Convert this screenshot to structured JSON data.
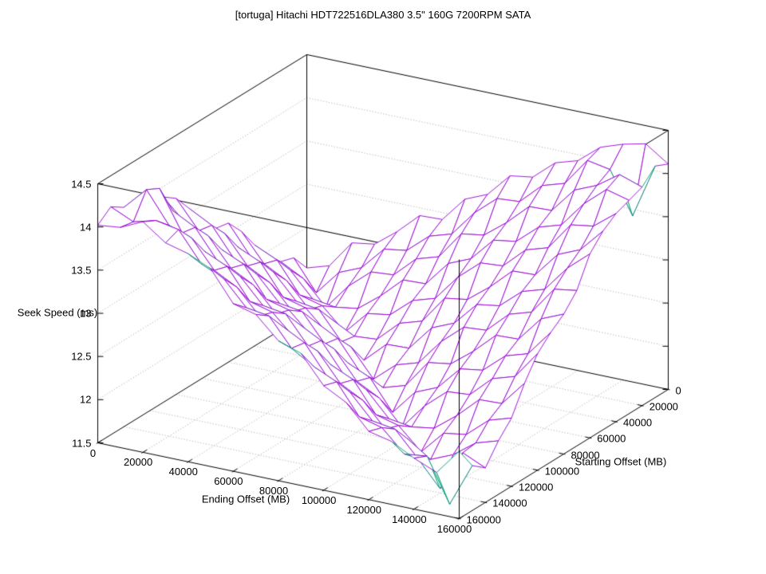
{
  "chart_data": {
    "type": "surface",
    "title": "[tortuga] Hitachi HDT722516DLA380 3.5\" 160G 7200RPM SATA",
    "xlabel": "Ending Offset (MB)",
    "ylabel": "Starting Offset (MB)",
    "zlabel": "Seek Speed (ms)",
    "xlim": [
      0,
      160000
    ],
    "ylim": [
      0,
      160000
    ],
    "zlim": [
      11.5,
      14.5
    ],
    "grid": true,
    "legend": "none",
    "x_tick_labels": [
      "0",
      "20000",
      "40000",
      "60000",
      "80000",
      "100000",
      "120000",
      "140000",
      "160000"
    ],
    "y_tick_labels": [
      "0",
      "20000",
      "40000",
      "60000",
      "80000",
      "100000",
      "120000",
      "140000",
      "160000"
    ],
    "z_tick_labels": [
      "11.5",
      "12",
      "12.5",
      "13",
      "13.5",
      "14",
      "14.5"
    ],
    "x_values": [
      0,
      10000,
      20000,
      30000,
      40000,
      50000,
      60000,
      70000,
      80000,
      90000,
      100000,
      110000,
      120000,
      130000,
      140000,
      150000,
      160000
    ],
    "y_values": [
      0,
      10000,
      20000,
      30000,
      40000,
      50000,
      60000,
      70000,
      80000,
      90000,
      100000,
      110000,
      120000,
      130000,
      140000,
      150000,
      160000
    ],
    "colors": {
      "mesh_top": "#9400d3",
      "mesh_underside": "#009e73",
      "grid_dotted": "#a6a6a6",
      "box": "#000000",
      "text": "#000000",
      "background": "#ffffff"
    },
    "z_values": [
      [
        12.03,
        12.11,
        12.43,
        12.47,
        12.67,
        12.91,
        12.92,
        13.21,
        13.32,
        13.59,
        13.63,
        13.85,
        13.93,
        14.14,
        14.23,
        14.29,
        14.11
      ],
      [
        12.24,
        11.89,
        12.18,
        12.29,
        12.56,
        12.6,
        12.82,
        12.9,
        13.2,
        13.42,
        13.44,
        13.68,
        13.76,
        14.08,
        14.03,
        13.55,
        14.18
      ],
      [
        12.29,
        12.15,
        11.87,
        12.17,
        12.39,
        12.41,
        12.65,
        12.73,
        13.05,
        13.09,
        13.29,
        13.53,
        13.54,
        13.83,
        13.94,
        14.12,
        14.03
      ],
      [
        12.46,
        12.34,
        12.06,
        12.02,
        12.06,
        12.26,
        12.5,
        12.51,
        12.8,
        12.91,
        13.18,
        13.22,
        13.44,
        13.52,
        13.82,
        14.04,
        13.97
      ],
      [
        12.67,
        12.55,
        12.2,
        12.13,
        11.88,
        12.15,
        12.19,
        12.41,
        12.49,
        12.79,
        13.01,
        13.03,
        13.27,
        13.35,
        13.67,
        13.71,
        13.91
      ],
      [
        12.92,
        12.6,
        12.46,
        12.18,
        12.12,
        11.98,
        12.0,
        12.24,
        12.32,
        12.64,
        12.68,
        12.88,
        13.12,
        13.13,
        13.42,
        13.53,
        13.8
      ],
      [
        13.11,
        12.77,
        12.65,
        12.37,
        12.33,
        12.01,
        11.85,
        12.09,
        12.1,
        12.39,
        12.5,
        12.77,
        12.81,
        13.03,
        13.11,
        13.41,
        13.63
      ],
      [
        13.14,
        12.98,
        12.86,
        12.51,
        12.44,
        12.19,
        12.1,
        11.78,
        12.0,
        12.08,
        12.38,
        12.6,
        12.62,
        12.86,
        12.94,
        13.26,
        13.3
      ],
      [
        13.32,
        13.23,
        12.91,
        12.77,
        12.49,
        12.43,
        12.29,
        11.95,
        11.83,
        11.91,
        12.23,
        12.27,
        12.47,
        12.71,
        12.72,
        13.01,
        13.12
      ],
      [
        13.56,
        13.42,
        13.08,
        12.96,
        12.68,
        12.64,
        12.32,
        12.16,
        12.04,
        11.69,
        11.98,
        12.09,
        12.36,
        12.4,
        12.62,
        12.7,
        13.0
      ],
      [
        13.77,
        13.45,
        13.29,
        13.17,
        12.82,
        12.75,
        12.5,
        12.41,
        12.09,
        11.95,
        11.67,
        11.97,
        12.19,
        12.21,
        12.45,
        12.53,
        12.85
      ],
      [
        13.88,
        13.63,
        13.54,
        13.22,
        13.08,
        12.8,
        12.74,
        12.6,
        12.26,
        12.14,
        11.86,
        11.82,
        11.86,
        12.06,
        12.3,
        12.31,
        12.6
      ],
      [
        13.93,
        13.87,
        13.73,
        13.39,
        13.27,
        12.99,
        12.95,
        12.63,
        12.47,
        12.35,
        12.0,
        11.93,
        11.68,
        11.95,
        11.99,
        12.21,
        12.29
      ],
      [
        14.03,
        14.22,
        13.76,
        13.6,
        13.48,
        13.13,
        13.06,
        12.81,
        12.72,
        12.4,
        12.26,
        11.98,
        11.92,
        11.74,
        11.85,
        12.04,
        12.12
      ],
      [
        14.04,
        14.3,
        13.94,
        13.85,
        13.53,
        13.39,
        13.11,
        13.05,
        12.91,
        12.57,
        12.45,
        12.17,
        12.13,
        11.85,
        11.55,
        12.02,
        11.9
      ],
      [
        14.14,
        14.02,
        14.09,
        14.04,
        13.7,
        13.58,
        13.3,
        13.26,
        12.94,
        12.78,
        12.66,
        12.31,
        12.24,
        11.99,
        12.02,
        11.52,
        12.02
      ],
      [
        14.02,
        14.05,
        14.17,
        13.98,
        13.91,
        13.79,
        13.44,
        13.37,
        13.12,
        13.03,
        12.71,
        12.57,
        12.29,
        12.23,
        12.09,
        11.98,
        12.28
      ]
    ]
  }
}
